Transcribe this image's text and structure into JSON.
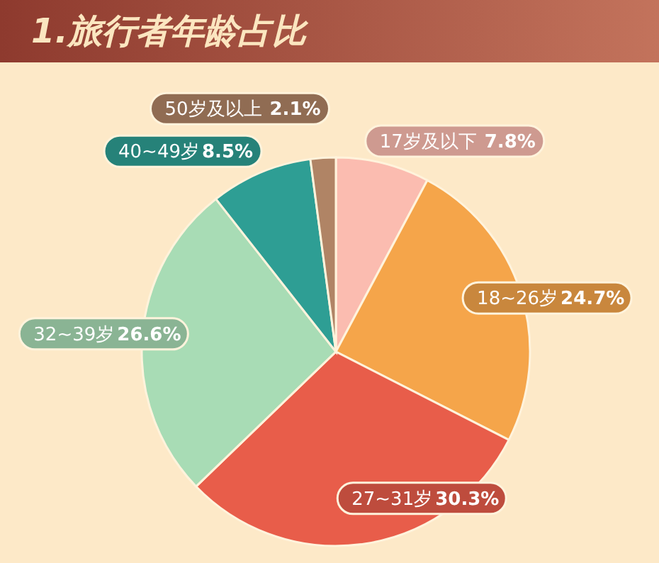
{
  "chart_data": {
    "type": "pie",
    "title": "1.旅行者年龄占比",
    "categories": [
      "17岁及以下",
      "18~26岁",
      "27~31岁",
      "32~39岁",
      "40~49岁",
      "50岁及以上"
    ],
    "values": [
      7.8,
      24.7,
      30.3,
      26.6,
      8.5,
      2.1
    ],
    "colors": [
      "#fbbcb0",
      "#f5a54a",
      "#e85d4a",
      "#a8dcb5",
      "#2e9e94",
      "#b08465"
    ],
    "value_labels": [
      "7.8%",
      "24.7%",
      "30.3%",
      "26.6%",
      "8.5%",
      "2.1%"
    ]
  }
}
